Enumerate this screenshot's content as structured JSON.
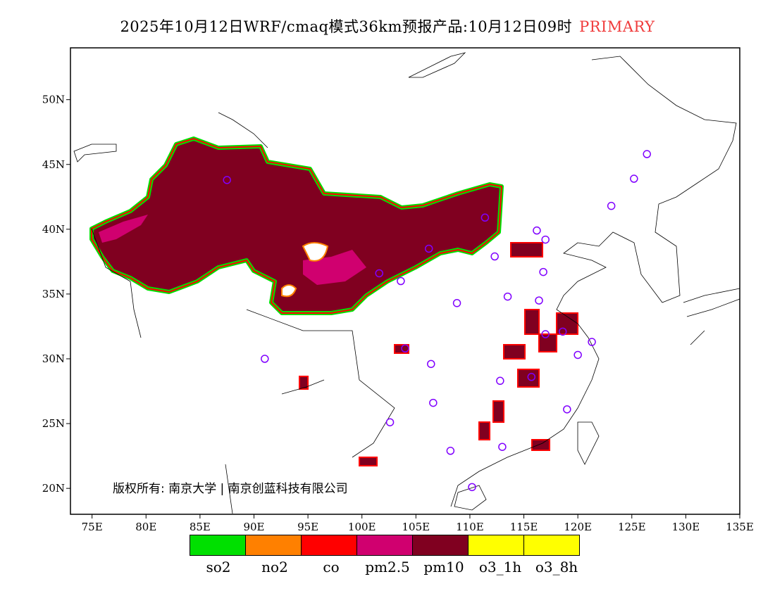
{
  "title": {
    "text": "2025年10月12日WRF/cmaq模式36km预报产品:10月12日09时",
    "tag": "PRIMARY",
    "tag_color": "#f03c3c"
  },
  "map": {
    "lon_range": [
      73,
      135
    ],
    "lat_range": [
      18,
      54
    ],
    "lon_ticks": [
      "75E",
      "80E",
      "85E",
      "90E",
      "95E",
      "100E",
      "105E",
      "110E",
      "115E",
      "120E",
      "125E",
      "130E",
      "135E"
    ],
    "lat_ticks": [
      "50N",
      "45N",
      "40N",
      "35N",
      "30N",
      "25N",
      "20N"
    ],
    "station_color": "#8000ff",
    "stations": [
      [
        87.5,
        43.8
      ],
      [
        126.4,
        45.8
      ],
      [
        125.2,
        43.9
      ],
      [
        123.1,
        41.8
      ],
      [
        111.4,
        40.9
      ],
      [
        116.2,
        39.9
      ],
      [
        117.0,
        39.2
      ],
      [
        112.3,
        37.9
      ],
      [
        106.2,
        38.5
      ],
      [
        101.6,
        36.6
      ],
      [
        103.6,
        36.0
      ],
      [
        108.8,
        34.3
      ],
      [
        113.5,
        34.8
      ],
      [
        116.8,
        36.7
      ],
      [
        116.4,
        34.5
      ],
      [
        104.0,
        30.8
      ],
      [
        91.0,
        30.0
      ],
      [
        106.4,
        29.6
      ],
      [
        112.8,
        28.3
      ],
      [
        115.7,
        28.6
      ],
      [
        117.0,
        31.9
      ],
      [
        118.6,
        32.1
      ],
      [
        121.3,
        31.3
      ],
      [
        120.0,
        30.3
      ],
      [
        106.6,
        26.6
      ],
      [
        102.6,
        25.1
      ],
      [
        119.0,
        26.1
      ],
      [
        108.2,
        22.9
      ],
      [
        113.0,
        23.2
      ],
      [
        110.2,
        20.1
      ]
    ]
  },
  "copyright": "版权所有: 南京大学 | 南京创蓝科技有限公司",
  "legend": [
    {
      "label": "so2",
      "color": "#00e000"
    },
    {
      "label": "no2",
      "color": "#ff8000"
    },
    {
      "label": "co",
      "color": "#ff0000"
    },
    {
      "label": "pm2.5",
      "color": "#d0006f"
    },
    {
      "label": "pm10",
      "color": "#800020"
    },
    {
      "label": "o3_1h",
      "color": "#ffff00"
    },
    {
      "label": "o3_8h",
      "color": "#ffff00"
    }
  ]
}
